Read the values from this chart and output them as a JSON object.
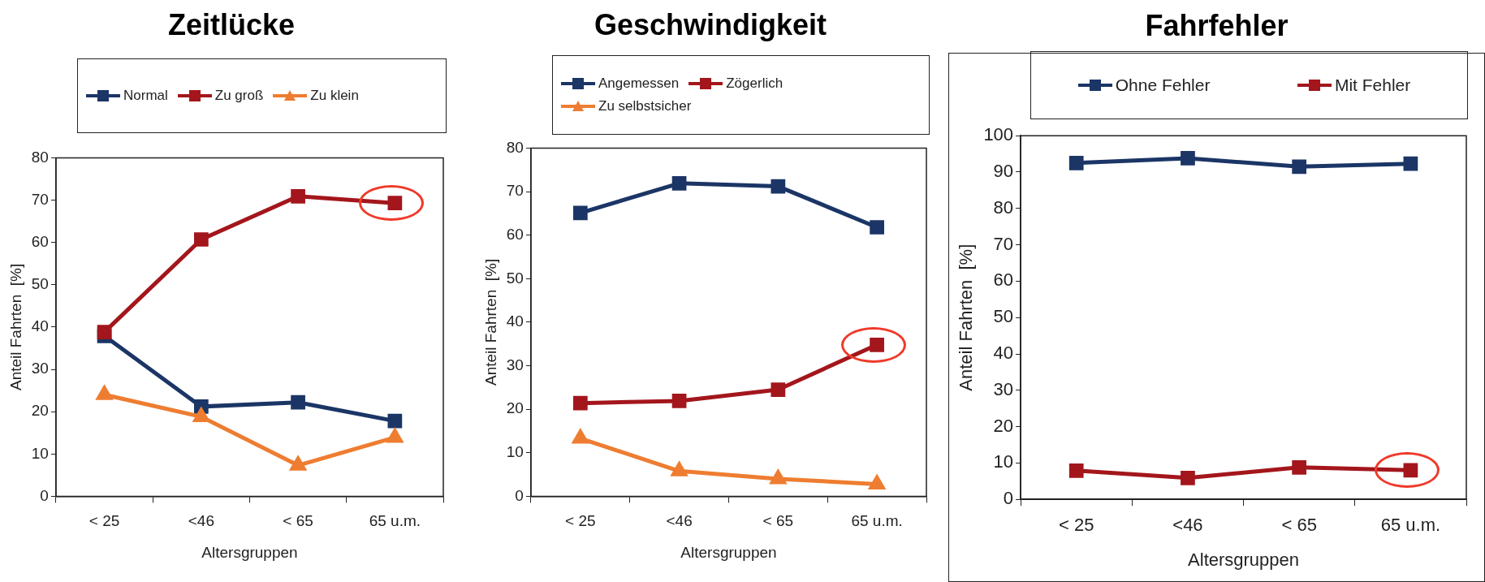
{
  "chart_data": [
    {
      "type": "line",
      "title": "Zeitlücke",
      "xlabel": "Altersgruppen",
      "ylabel": "Anteil Fahrten  [%]",
      "categories": [
        "< 25",
        "<46",
        "< 65",
        "65 u.m."
      ],
      "ylim": [
        0,
        80
      ],
      "yticks": [
        0,
        10,
        20,
        30,
        40,
        50,
        60,
        70,
        80
      ],
      "grid": false,
      "legend": "top",
      "line_style": "solid",
      "series": [
        {
          "name": "Normal",
          "color": "#1b3566",
          "marker": "square",
          "values": [
            37.9,
            21.2,
            22.2,
            17.8
          ]
        },
        {
          "name": "Zu groß",
          "color": "#a3161c",
          "marker": "square",
          "values": [
            38.8,
            60.7,
            70.9,
            69.3
          ]
        },
        {
          "name": "Zu klein",
          "color": "#ee7d31",
          "marker": "triangle",
          "values": [
            24,
            18.8,
            7.3,
            13.9
          ]
        }
      ]
    },
    {
      "type": "line",
      "title": "Geschwindigkeit",
      "xlabel": "Altersgruppen",
      "ylabel": "Anteil Fahrten  [%]",
      "categories": [
        "< 25",
        "<46",
        "< 65",
        "65 u.m."
      ],
      "ylim": [
        0,
        80
      ],
      "yticks": [
        0,
        10,
        20,
        30,
        40,
        50,
        60,
        70,
        80
      ],
      "grid": false,
      "legend": "top",
      "line_style": "solid",
      "series": [
        {
          "name": "Angemessen",
          "color": "#1b3566",
          "marker": "square",
          "values": [
            65.1,
            71.9,
            71.2,
            61.8
          ]
        },
        {
          "name": "Zögerlich",
          "color": "#a3161c",
          "marker": "square",
          "values": [
            21.4,
            21.9,
            24.5,
            34.8
          ]
        },
        {
          "name": "Zu selbstsicher",
          "color": "#ee7d31",
          "marker": "triangle",
          "values": [
            13.3,
            5.8,
            4,
            2.8
          ]
        }
      ]
    },
    {
      "type": "line",
      "title": "Fahrfehler",
      "xlabel": "Altersgruppen",
      "ylabel": "Anteil Fahrten  [%]",
      "categories": [
        "< 25",
        "<46",
        "< 65",
        "65 u.m."
      ],
      "ylim": [
        0,
        100
      ],
      "yticks": [
        0,
        10,
        20,
        30,
        40,
        50,
        60,
        70,
        80,
        90,
        100
      ],
      "grid": false,
      "legend": "top",
      "line_style": "solid",
      "series": [
        {
          "name": "Ohne Fehler",
          "color": "#1b3566",
          "marker": "square",
          "values": [
            92.5,
            93.8,
            91.5,
            92.3
          ]
        },
        {
          "name": "Mit Fehler",
          "color": "#a3161c",
          "marker": "square",
          "values": [
            7.9,
            5.9,
            8.8,
            8
          ]
        }
      ]
    }
  ]
}
